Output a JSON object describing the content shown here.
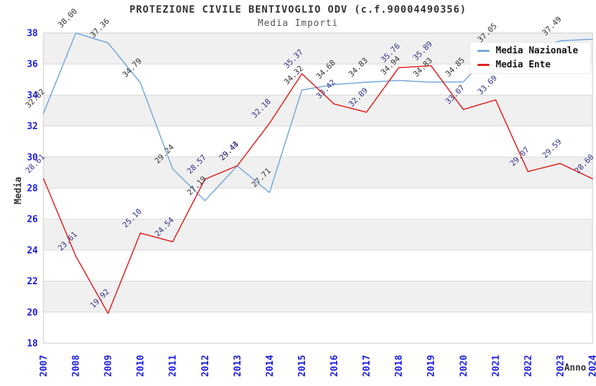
{
  "chart_data": {
    "type": "line",
    "title": "PROTEZIONE CIVILE BENTIVOGLIO ODV (c.f.90004490356)",
    "subtitle": "Media Importi",
    "xlabel": "Anno",
    "ylabel": "Media",
    "ylim": [
      18,
      38
    ],
    "ytick_step": 2,
    "yticks": [
      18,
      20,
      22,
      24,
      26,
      28,
      30,
      32,
      34,
      36,
      38
    ],
    "grid": "horizontal",
    "band_fill": "between alternate y gridlines starting at top (38-36 gray)",
    "legend_position": "top-right",
    "x": [
      2007,
      2008,
      2009,
      2010,
      2011,
      2012,
      2013,
      2014,
      2015,
      2016,
      2017,
      2018,
      2019,
      2020,
      2021,
      2022,
      2023,
      2024
    ],
    "series": [
      {
        "name": "Media Nazionale",
        "color": "#74a7dc",
        "label_color": "#333333",
        "values": [
          32.82,
          38.0,
          37.36,
          34.79,
          29.24,
          27.19,
          29.43,
          27.71,
          34.32,
          34.68,
          34.83,
          34.94,
          34.83,
          34.85,
          37.05,
          36.9,
          37.49,
          37.6
        ],
        "labels": [
          "32.82",
          "38.00",
          "37.36",
          "34.79",
          "29.24",
          "27.19",
          "29.43",
          "27.71",
          "34.32",
          "34.68",
          "34.83",
          "34.94",
          "34.83",
          "34.85",
          "37.05",
          "",
          "37.49",
          ""
        ],
        "note": "2022 and 2024 point labels are hidden behind the legend box in the screenshot"
      },
      {
        "name": "Media Ente",
        "color": "#e01f1f",
        "label_color": "#333388",
        "values": [
          28.61,
          23.61,
          19.92,
          25.1,
          24.54,
          28.57,
          29.44,
          32.18,
          35.37,
          33.42,
          32.89,
          35.76,
          35.89,
          33.07,
          33.69,
          29.07,
          29.59,
          28.6
        ],
        "labels": [
          "28.61",
          "23.61",
          "19.92",
          "25.10",
          "24.54",
          "28.57",
          "29.44",
          "32.18",
          "35.37",
          "33.42",
          "32.89",
          "35.76",
          "35.89",
          "33.07",
          "33.69",
          "29.07",
          "29.59",
          "28.60"
        ]
      }
    ],
    "colors": {
      "axis_tick_text": "#1a1ae6",
      "band_gray": "#f0f0f0",
      "gridline": "#d9d9d9",
      "plot_border": "#cccccc",
      "axis_title_text": "#333333",
      "title_text": "#333333",
      "subtitle_text": "#555555",
      "legend_text": "#111111",
      "background": "#ffffff"
    }
  }
}
